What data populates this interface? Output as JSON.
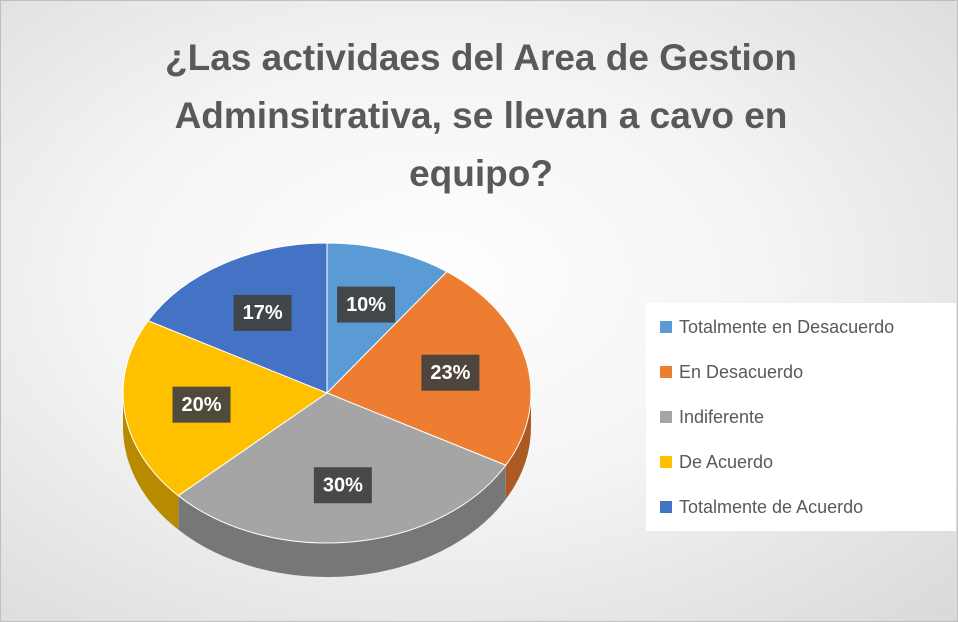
{
  "chart_data": {
    "type": "pie",
    "title": "¿Las actividaes del Area de Gestion Adminsitrativa, se llevan a cavo en equipo?",
    "categories": [
      "Totalmente en Desacuerdo",
      "En Desacuerdo",
      "Indiferente",
      "De Acuerdo",
      "Totalmente de Acuerdo"
    ],
    "values": [
      10,
      23,
      30,
      20,
      17
    ],
    "value_labels": [
      "10%",
      "23%",
      "30%",
      "20%",
      "17%"
    ],
    "colors": [
      "#5b9bd5",
      "#ed7d31",
      "#a5a5a5",
      "#ffc000",
      "#4472c4"
    ],
    "legend": "right"
  }
}
